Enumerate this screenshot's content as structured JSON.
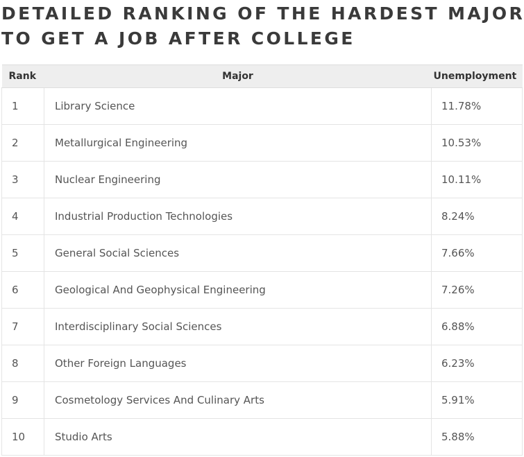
{
  "title_lines": [
    "DETAILED RANKING OF THE HARDEST MAJORS",
    "TO GET A JOB AFTER COLLEGE"
  ],
  "chart_data": {
    "type": "table",
    "columns": [
      "Rank",
      "Major",
      "Unemployment"
    ],
    "rows": [
      [
        "1",
        "Library Science",
        "11.78%"
      ],
      [
        "2",
        "Metallurgical Engineering",
        "10.53%"
      ],
      [
        "3",
        "Nuclear Engineering",
        "10.11%"
      ],
      [
        "4",
        "Industrial Production Technologies",
        "8.24%"
      ],
      [
        "5",
        "General Social Sciences",
        "7.66%"
      ],
      [
        "6",
        "Geological And Geophysical Engineering",
        "7.26%"
      ],
      [
        "7",
        "Interdisciplinary Social Sciences",
        "6.88%"
      ],
      [
        "8",
        "Other Foreign Languages",
        "6.23%"
      ],
      [
        "9",
        "Cosmetology Services And Culinary Arts",
        "5.91%"
      ],
      [
        "10",
        "Studio Arts",
        "5.88%"
      ]
    ]
  }
}
